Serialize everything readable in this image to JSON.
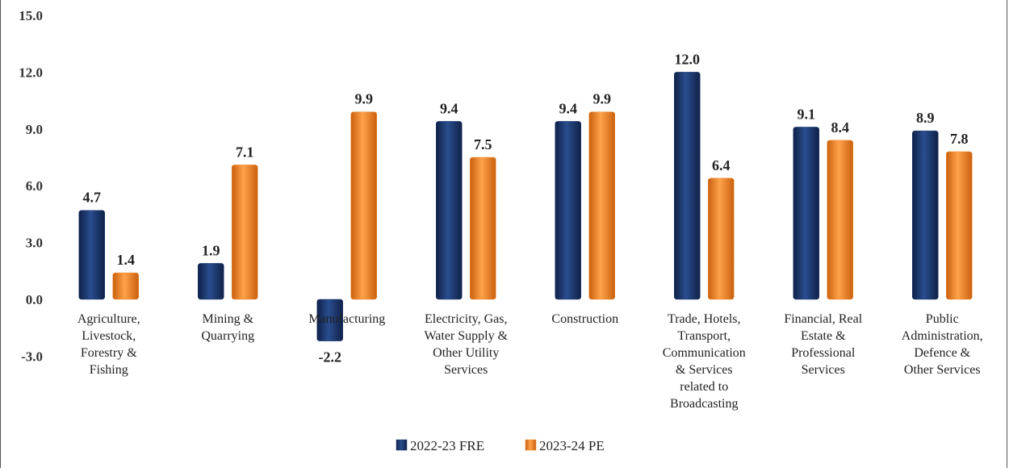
{
  "chart_data": {
    "type": "bar",
    "title": "",
    "xlabel": "",
    "ylabel": "",
    "ylim": [
      -3.0,
      15.0
    ],
    "yticks": [
      "15.0",
      "12.0",
      "9.0",
      "6.0",
      "3.0",
      "0.0",
      "-3.0"
    ],
    "ytick_values": [
      15,
      12,
      9,
      6,
      3,
      0,
      -3
    ],
    "grid": false,
    "legend_position": "bottom",
    "categories": [
      [
        "Agriculture,",
        "Livestock,",
        "Forestry &",
        "Fishing"
      ],
      [
        "Mining &",
        "Quarrying"
      ],
      [
        "Manufacturing"
      ],
      [
        "Electricity, Gas,",
        "Water Supply &",
        "Other Utility",
        "Services"
      ],
      [
        "Construction"
      ],
      [
        "Trade, Hotels,",
        "Transport,",
        "Communication",
        "& Services",
        "related to",
        "Broadcasting"
      ],
      [
        "Financial, Real",
        "Estate &",
        "Professional",
        "Services"
      ],
      [
        "Public",
        "Administration,",
        "Defence &",
        "Other Services"
      ]
    ],
    "series": [
      {
        "name": "2022-23 FRE",
        "color": "#1f3b73",
        "values": [
          4.7,
          1.9,
          -2.2,
          9.4,
          9.4,
          12.0,
          9.1,
          8.9
        ],
        "labels": [
          "4.7",
          "1.9",
          "-2.2",
          "9.4",
          "9.4",
          "12.0",
          "9.1",
          "8.9"
        ]
      },
      {
        "name": "2023-24 PE",
        "color": "#f08a2c",
        "values": [
          1.4,
          7.1,
          9.9,
          7.5,
          9.9,
          6.4,
          8.4,
          7.8
        ],
        "labels": [
          "1.4",
          "7.1",
          "9.9",
          "7.5",
          "9.9",
          "6.4",
          "8.4",
          "7.8"
        ]
      }
    ]
  }
}
